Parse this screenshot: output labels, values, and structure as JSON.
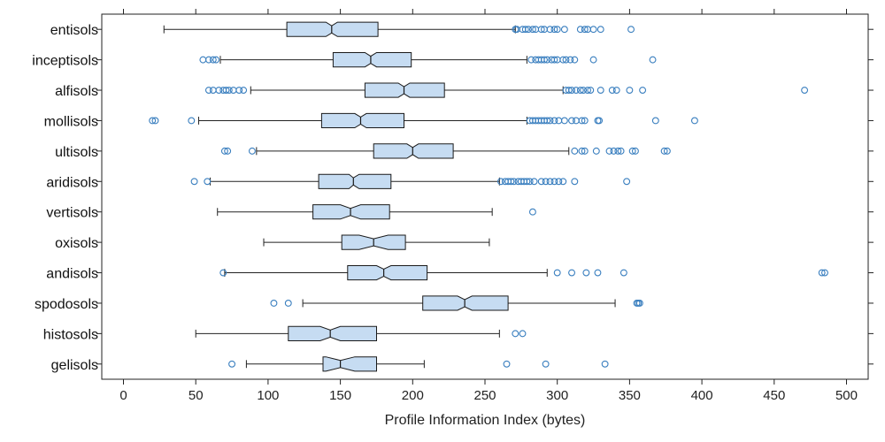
{
  "chart_data": {
    "type": "boxplot",
    "orientation": "horizontal",
    "notched": true,
    "title": "",
    "xlabel": "Profile Information Index (bytes)",
    "ylabel": "",
    "xlim": [
      -15,
      515
    ],
    "xticks": [
      0,
      50,
      100,
      150,
      200,
      250,
      300,
      350,
      400,
      450,
      500
    ],
    "grid": false,
    "colors": {
      "box_fill": "#c6dcf2",
      "box_edge": "#1a1a1a",
      "outlier": "#3a7fbf"
    },
    "categories": [
      "entisols",
      "inceptisols",
      "alfisols",
      "mollisols",
      "ultisols",
      "aridisols",
      "vertisols",
      "oxisols",
      "andisols",
      "spodosols",
      "histosols",
      "gelisols"
    ],
    "boxes": [
      {
        "category": "entisols",
        "whislo": 28,
        "q1": 113,
        "med": 144,
        "q3": 176,
        "whishi": 271,
        "notch": [
          140,
          148
        ],
        "fliers": [
          271,
          272,
          276,
          278,
          280,
          283,
          285,
          289,
          291,
          295,
          298,
          300,
          305,
          316,
          319,
          321,
          325,
          330,
          351
        ]
      },
      {
        "category": "inceptisols",
        "whislo": 67,
        "q1": 145,
        "med": 171,
        "q3": 199,
        "whishi": 279,
        "notch": [
          167,
          175
        ],
        "fliers": [
          55,
          59,
          62,
          64,
          282,
          285,
          287,
          289,
          291,
          293,
          296,
          298,
          300,
          304,
          306,
          309,
          312,
          325,
          366
        ]
      },
      {
        "category": "alfisols",
        "whislo": 88,
        "q1": 167,
        "med": 194,
        "q3": 222,
        "whishi": 304,
        "notch": [
          190,
          198
        ],
        "fliers": [
          59,
          62,
          66,
          69,
          71,
          73,
          76,
          80,
          83,
          306,
          308,
          310,
          313,
          316,
          318,
          321,
          323,
          330,
          338,
          341,
          350,
          359,
          471
        ]
      },
      {
        "category": "mollisols",
        "whislo": 52,
        "q1": 137,
        "med": 164,
        "q3": 194,
        "whishi": 279,
        "notch": [
          160,
          168
        ],
        "fliers": [
          20,
          22,
          47,
          281,
          283,
          285,
          287,
          289,
          291,
          293,
          295,
          298,
          301,
          305,
          310,
          313,
          317,
          319,
          328,
          329,
          368,
          395
        ]
      },
      {
        "category": "ultisols",
        "whislo": 92,
        "q1": 173,
        "med": 200,
        "q3": 228,
        "whishi": 308,
        "notch": [
          196,
          204
        ],
        "fliers": [
          70,
          72,
          89,
          312,
          317,
          319,
          327,
          336,
          339,
          342,
          344,
          352,
          354,
          374,
          376
        ]
      },
      {
        "category": "aridisols",
        "whislo": 60,
        "q1": 135,
        "med": 159,
        "q3": 185,
        "whishi": 260,
        "notch": [
          156,
          163
        ],
        "fliers": [
          49,
          58,
          261,
          264,
          266,
          268,
          270,
          273,
          275,
          277,
          279,
          281,
          284,
          289,
          292,
          295,
          298,
          301,
          304,
          312,
          348
        ]
      },
      {
        "category": "vertisols",
        "whislo": 65,
        "q1": 131,
        "med": 157,
        "q3": 184,
        "whishi": 255,
        "notch": [
          150,
          164
        ],
        "fliers": [
          283
        ]
      },
      {
        "category": "oxisols",
        "whislo": 97,
        "q1": 151,
        "med": 173,
        "q3": 195,
        "whishi": 253,
        "notch": [
          163,
          183
        ],
        "fliers": []
      },
      {
        "category": "andisols",
        "whislo": 70,
        "q1": 155,
        "med": 180,
        "q3": 210,
        "whishi": 293,
        "notch": [
          175,
          185
        ],
        "fliers": [
          69,
          300,
          310,
          320,
          328,
          346,
          483,
          485
        ]
      },
      {
        "category": "spodosols",
        "whislo": 124,
        "q1": 207,
        "med": 236,
        "q3": 266,
        "whishi": 340,
        "notch": [
          231,
          241
        ],
        "fliers": [
          104,
          114,
          355,
          356,
          357
        ]
      },
      {
        "category": "histosols",
        "whislo": 50,
        "q1": 114,
        "med": 143,
        "q3": 175,
        "whishi": 260,
        "notch": [
          136,
          150
        ],
        "fliers": [
          271,
          276
        ]
      },
      {
        "category": "gelisols",
        "whislo": 85,
        "q1": 138,
        "med": 150,
        "q3": 175,
        "whishi": 208,
        "notch": [
          140,
          160
        ],
        "fliers": [
          75,
          265,
          292,
          333
        ]
      }
    ]
  }
}
